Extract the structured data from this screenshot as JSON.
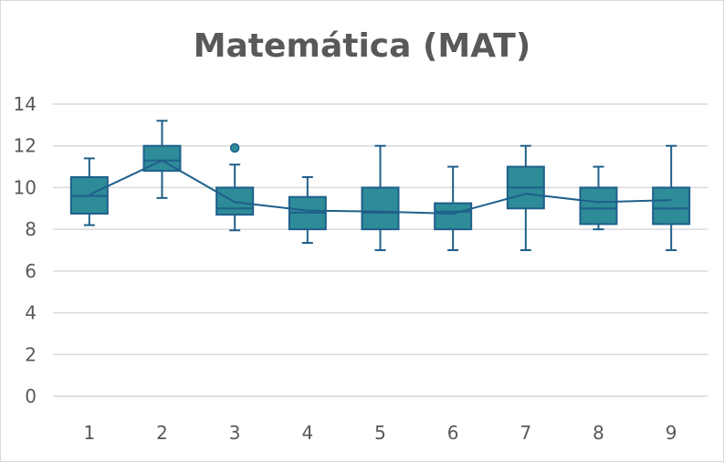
{
  "chart_data": {
    "type": "box",
    "title": "Matemática (MAT)",
    "xlabel": "",
    "ylabel": "",
    "ylim": [
      0,
      14
    ],
    "yticks": [
      0,
      2,
      4,
      6,
      8,
      10,
      12,
      14
    ],
    "categories": [
      "1",
      "2",
      "3",
      "4",
      "5",
      "6",
      "7",
      "8",
      "9"
    ],
    "grid": true,
    "legend": "none",
    "colors": {
      "box_fill": "#2e8b98",
      "box_stroke": "#1f5f8b",
      "line": "#1f5f8b",
      "grid": "#d9d9d9",
      "text": "#595959"
    },
    "series": [
      {
        "boxes": [
          {
            "min": 8.2,
            "q1": 8.75,
            "median": 9.6,
            "q3": 10.5,
            "max": 11.4,
            "mean": 9.65,
            "outliers": []
          },
          {
            "min": 9.5,
            "q1": 10.8,
            "median": 11.3,
            "q3": 12.0,
            "max": 13.2,
            "mean": 11.3,
            "outliers": []
          },
          {
            "min": 7.95,
            "q1": 8.7,
            "median": 9.0,
            "q3": 10.0,
            "max": 11.1,
            "mean": 9.3,
            "outliers": [
              11.9
            ]
          },
          {
            "min": 7.35,
            "q1": 8.0,
            "median": 8.8,
            "q3": 9.55,
            "max": 10.5,
            "mean": 8.9,
            "outliers": []
          },
          {
            "min": 7.0,
            "q1": 8.0,
            "median": 8.8,
            "q3": 10.0,
            "max": 12.0,
            "mean": 8.85,
            "outliers": []
          },
          {
            "min": 7.0,
            "q1": 8.0,
            "median": 8.85,
            "q3": 9.25,
            "max": 11.0,
            "mean": 8.75,
            "outliers": []
          },
          {
            "min": 7.0,
            "q1": 9.0,
            "median": 10.0,
            "q3": 11.0,
            "max": 12.0,
            "mean": 9.7,
            "outliers": []
          },
          {
            "min": 8.0,
            "q1": 8.25,
            "median": 9.0,
            "q3": 10.0,
            "max": 11.0,
            "mean": 9.3,
            "outliers": []
          },
          {
            "min": 7.0,
            "q1": 8.25,
            "median": 9.0,
            "q3": 10.0,
            "max": 12.0,
            "mean": 9.4,
            "outliers": []
          }
        ]
      }
    ]
  }
}
